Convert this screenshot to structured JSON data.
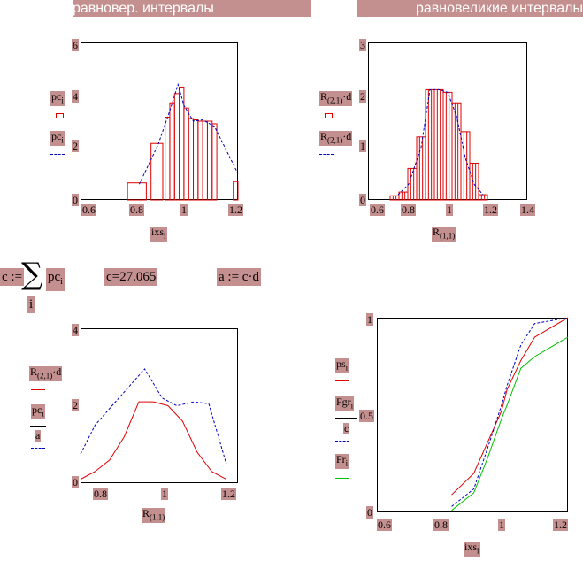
{
  "headers": {
    "left": "равновер. интервалы",
    "right": "равновеликие интервалы"
  },
  "colors": {
    "label_bg": "#c48f8f",
    "header_bg": "#c48f8f",
    "red": "#e00000",
    "blue": "#0000c0",
    "green": "#00c000"
  },
  "formulas": {
    "sum_lhs": "c :=",
    "sum_symbol": "∑",
    "sum_term": "pc",
    "sum_term_sub": "i",
    "sum_index": "i",
    "c_result_lhs": "c",
    "c_result_eq": "=",
    "c_result_value": "27.065",
    "a_def": "a := c·d"
  },
  "plot1": {
    "yticks": [
      "6",
      "4",
      "2",
      "0"
    ],
    "xticks": [
      "0.6",
      "0.8",
      "1",
      "1.2"
    ],
    "xlabel": "ixs",
    "xlabel_sub": "i",
    "legend": [
      {
        "text": "pc",
        "sub": "i",
        "color": "#e00000"
      },
      {
        "text": "pc",
        "sub": "i",
        "color": "#0000c0"
      }
    ],
    "chart_data": {
      "type": "bar",
      "xlim": [
        0.55,
        1.22
      ],
      "ylim": [
        0,
        6
      ],
      "bars": [
        {
          "x0": 0.75,
          "x1": 0.83,
          "h": 0.65
        },
        {
          "x0": 0.85,
          "x1": 0.9,
          "h": 2.15
        },
        {
          "x0": 0.91,
          "x1": 0.93,
          "h": 3.15
        },
        {
          "x0": 0.93,
          "x1": 0.95,
          "h": 3.7
        },
        {
          "x0": 0.95,
          "x1": 0.97,
          "h": 4.05
        },
        {
          "x0": 0.97,
          "x1": 0.99,
          "h": 4.3
        },
        {
          "x0": 0.99,
          "x1": 1.01,
          "h": 3.5
        },
        {
          "x0": 1.01,
          "x1": 1.03,
          "h": 3.1
        },
        {
          "x0": 1.03,
          "x1": 1.05,
          "h": 3.05
        },
        {
          "x0": 1.05,
          "x1": 1.07,
          "h": 3.0
        },
        {
          "x0": 1.07,
          "x1": 1.09,
          "h": 3.0
        },
        {
          "x0": 1.09,
          "x1": 1.11,
          "h": 3.0
        },
        {
          "x0": 1.11,
          "x1": 1.13,
          "h": 2.9
        },
        {
          "x0": 1.2,
          "x1": 1.22,
          "h": 0.7
        }
      ],
      "line": {
        "x": [
          0.8,
          0.88,
          0.93,
          0.965,
          0.99,
          1.03,
          1.07,
          1.12,
          1.22
        ],
        "y": [
          0.6,
          2.1,
          3.4,
          4.4,
          3.6,
          3.0,
          3.05,
          2.8,
          1.0
        ]
      }
    }
  },
  "plot2": {
    "yticks": [
      "3",
      "2",
      "1",
      "0"
    ],
    "xticks": [
      "0.6",
      "0.8",
      "1",
      "1.2",
      "1.4"
    ],
    "xlabel": "R",
    "xlabel_sub": "(1,1)",
    "legend": [
      {
        "text": "R",
        "sub": "(2,1)",
        "tail": "·d",
        "color": "#e00000"
      },
      {
        "text": "R",
        "sub": "(2,1)",
        "tail": "·d",
        "color": "#0000c0"
      }
    ],
    "chart_data": {
      "type": "bar",
      "xlim": [
        0.55,
        1.45
      ],
      "ylim": [
        0,
        3
      ],
      "bars_x": [
        0.7,
        0.75,
        0.8,
        0.85,
        0.9,
        0.95,
        1.0,
        1.05,
        1.1,
        1.15,
        1.2
      ],
      "bars_h": [
        0.08,
        0.15,
        0.6,
        1.2,
        2.1,
        2.1,
        2.05,
        1.85,
        1.3,
        0.7,
        0.1
      ],
      "bar_w": 0.05,
      "line": {
        "x": [
          0.72,
          0.78,
          0.85,
          0.9,
          0.95,
          1.0,
          1.05,
          1.1,
          1.15,
          1.2
        ],
        "y": [
          0.1,
          0.3,
          1.0,
          2.1,
          2.1,
          2.05,
          1.6,
          0.8,
          0.3,
          0.1
        ]
      }
    }
  },
  "plot3": {
    "yticks": [
      "4",
      "2",
      "0"
    ],
    "xticks": [
      "0.8",
      "1",
      "1.2"
    ],
    "xlabel": "R",
    "xlabel_sub": "(1,1)",
    "legend": [
      {
        "text": "R",
        "sub": "(2,1)",
        "tail": "·d",
        "color": "#e00000",
        "frac": false
      },
      {
        "text": "pc",
        "sub": "i",
        "den": "a",
        "color": "#0000c0",
        "frac": true
      }
    ],
    "chart_data": {
      "type": "line",
      "xlim": [
        0.7,
        1.24
      ],
      "ylim": [
        0,
        4
      ],
      "series": [
        {
          "color": "#e00000",
          "x": [
            0.7,
            0.75,
            0.8,
            0.85,
            0.9,
            0.95,
            1.0,
            1.05,
            1.1,
            1.15,
            1.2
          ],
          "y": [
            0.1,
            0.3,
            0.6,
            1.2,
            2.1,
            2.1,
            2.0,
            1.6,
            0.8,
            0.3,
            0.1
          ]
        },
        {
          "color": "#0000c0",
          "x": [
            0.7,
            0.75,
            0.82,
            0.92,
            0.98,
            1.03,
            1.09,
            1.14,
            1.2
          ],
          "y": [
            0.75,
            1.5,
            2.1,
            2.95,
            2.2,
            2.0,
            2.1,
            2.05,
            0.5
          ]
        }
      ]
    }
  },
  "plot4": {
    "yticks": [
      "1",
      "0.5",
      "0"
    ],
    "xticks": [
      "0.6",
      "0.8",
      "1",
      "1.2"
    ],
    "xlabel": "ixs",
    "xlabel_sub": "i",
    "legend": [
      {
        "text": "ps",
        "sub": "i",
        "color": "#e00000",
        "frac": false
      },
      {
        "text": "Fgr",
        "sub": "i",
        "den": "c",
        "color": "#0000c0",
        "frac": true
      },
      {
        "text": "Fr",
        "sub": "i",
        "color": "#00c000",
        "frac": false
      }
    ],
    "chart_data": {
      "type": "line",
      "xlim": [
        0.53,
        1.22
      ],
      "ylim": [
        0,
        1
      ],
      "series": [
        {
          "color": "#e00000",
          "x": [
            0.8,
            0.88,
            0.93,
            0.98,
            1.0,
            1.05,
            1.1,
            1.22
          ],
          "y": [
            0.09,
            0.2,
            0.36,
            0.52,
            0.63,
            0.78,
            0.9,
            1.0
          ]
        },
        {
          "color": "#0000c0",
          "x": [
            0.8,
            0.88,
            0.93,
            0.98,
            1.0,
            1.05,
            1.1,
            1.22
          ],
          "y": [
            0.03,
            0.12,
            0.33,
            0.55,
            0.65,
            0.86,
            0.97,
            1.0
          ]
        },
        {
          "color": "#00c000",
          "x": [
            0.8,
            0.88,
            0.93,
            0.98,
            1.0,
            1.05,
            1.1,
            1.22
          ],
          "y": [
            0.01,
            0.1,
            0.28,
            0.48,
            0.55,
            0.74,
            0.8,
            0.9
          ]
        }
      ]
    }
  }
}
